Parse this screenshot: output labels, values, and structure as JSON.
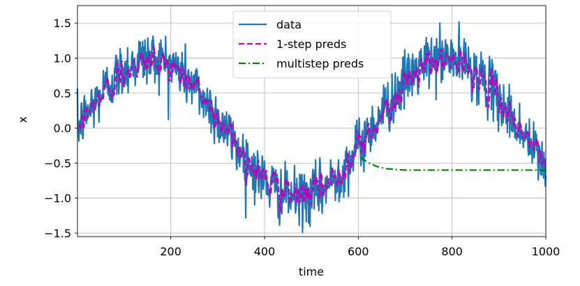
{
  "chart_data": {
    "type": "line",
    "xlabel": "time",
    "ylabel": "x",
    "xlim": [
      1,
      1000
    ],
    "ylim": [
      -1.55,
      1.75
    ],
    "xticks": [
      200,
      400,
      600,
      800,
      1000
    ],
    "xtick_labels": [
      "200",
      "400",
      "600",
      "800",
      "1000"
    ],
    "yticks": [
      -1.5,
      -1.0,
      -0.5,
      0.0,
      0.5,
      1.0,
      1.5
    ],
    "ytick_labels": [
      "−1.5",
      "−1.0",
      "−0.5",
      "0.0",
      "0.5",
      "1.0",
      "1.5"
    ],
    "grid": true,
    "legend_position": "top-center",
    "series": [
      {
        "name": "data",
        "style": "solid",
        "color": "#1f77b4",
        "description": "sin(0.01*t) plus noise (std ~0.2), t = 1..1000",
        "x_range": [
          1,
          1000
        ],
        "noise_std": 0.2
      },
      {
        "name": "1-step preds",
        "style": "dashed",
        "color": "#bf00bf",
        "description": "one-step-ahead predictions, t = 5..1000",
        "x_range": [
          5,
          1000
        ]
      },
      {
        "name": "multistep preds",
        "style": "dashdot",
        "color": "#008000",
        "x_range": [
          605,
          1000
        ],
        "x": [
          605,
          620,
          640,
          660,
          680,
          700,
          750,
          800,
          850,
          900,
          950,
          1000
        ],
        "values": [
          -0.42,
          -0.49,
          -0.55,
          -0.58,
          -0.59,
          -0.6,
          -0.6,
          -0.6,
          -0.6,
          -0.6,
          -0.6,
          -0.6
        ]
      }
    ]
  }
}
